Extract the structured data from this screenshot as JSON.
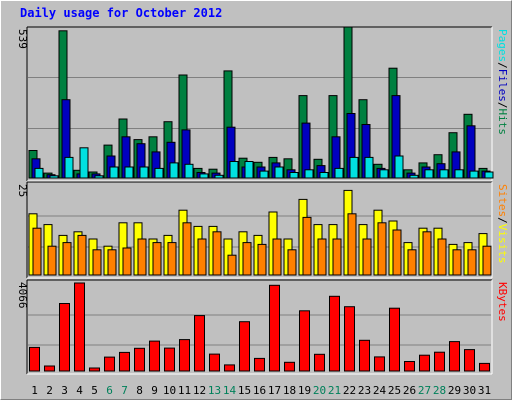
{
  "chart_data": {
    "type": "bar",
    "title": "Daily usage for October 2012",
    "categories": [
      "1",
      "2",
      "3",
      "4",
      "5",
      "6",
      "7",
      "8",
      "9",
      "10",
      "11",
      "12",
      "13",
      "14",
      "15",
      "16",
      "17",
      "18",
      "19",
      "20",
      "21",
      "22",
      "23",
      "24",
      "25",
      "26",
      "27",
      "28",
      "29",
      "30",
      "31"
    ],
    "weekend_days": [
      "6",
      "7",
      "13",
      "14",
      "20",
      "21",
      "27",
      "28"
    ],
    "panels": [
      {
        "name": "top",
        "scale_max_label": "539",
        "ylim": [
          0,
          539
        ],
        "right_label": [
          "Pages",
          "/",
          "Files",
          "/",
          "Hits"
        ],
        "right_label_colors": [
          "#00e0e0",
          "#000000",
          "#0000c0",
          "#000000",
          "#008040"
        ],
        "series": [
          {
            "name": "Hits",
            "color": "#008040",
            "values": [
              100,
              18,
              536,
              28,
              22,
              120,
              215,
              140,
              150,
              205,
              375,
              35,
              32,
              390,
              72,
              57,
              75,
              70,
              300,
              68,
              300,
              550,
              285,
              50,
              400,
              30,
              55,
              85,
              165,
              232,
              35
            ]
          },
          {
            "name": "Files",
            "color": "#0000c0",
            "values": [
              70,
              12,
              285,
              15,
              15,
              80,
              150,
              125,
              95,
              130,
              175,
              20,
              18,
              185,
              40,
              40,
              55,
              30,
              200,
              45,
              150,
              235,
              195,
              35,
              300,
              18,
              40,
              52,
              95,
              190,
              25
            ]
          },
          {
            "name": "Pages",
            "color": "#00e0e0",
            "values": [
              35,
              8,
              75,
              110,
              8,
              40,
              40,
              40,
              35,
              55,
              50,
              15,
              10,
              60,
              60,
              25,
              40,
              20,
              30,
              20,
              35,
              75,
              75,
              30,
              80,
              10,
              30,
              30,
              30,
              25,
              22
            ]
          }
        ]
      },
      {
        "name": "middle",
        "scale_max_label": "25",
        "ylim": [
          0,
          25
        ],
        "right_label": [
          "Sites",
          "/",
          "Visits"
        ],
        "right_label_colors": [
          "#ff8000",
          "#000000",
          "#ffff00"
        ],
        "series": [
          {
            "name": "Visits",
            "color": "#ffff00",
            "values": [
              17,
              14,
              11,
              12,
              10,
              8,
              14.5,
              14.5,
              10,
              11,
              18,
              13.5,
              13.5,
              10,
              12,
              11,
              17.5,
              10,
              21,
              14,
              14,
              23.5,
              14,
              18,
              15,
              9,
              13,
              13,
              8.5,
              9,
              11.5
            ]
          },
          {
            "name": "Sites",
            "color": "#ff8000",
            "values": [
              13,
              8,
              9,
              11,
              7,
              7,
              7.5,
              10,
              9,
              9,
              14.5,
              10,
              12,
              5.5,
              9,
              8.5,
              10,
              7,
              16,
              10,
              10,
              17,
              10,
              14.5,
              12.5,
              7,
              12,
              10,
              7,
              7,
              8
            ]
          }
        ]
      },
      {
        "name": "bottom",
        "scale_max_label": "4066",
        "ylim": [
          0,
          4066
        ],
        "right_label": [
          "KBytes"
        ],
        "right_label_colors": [
          "#ff0000"
        ],
        "series": [
          {
            "name": "KBytes",
            "color": "#ff0000",
            "values": [
              1090,
              230,
              3120,
              4066,
              140,
              640,
              860,
              1050,
              1380,
              1060,
              1450,
              2560,
              780,
              280,
              2280,
              580,
              3960,
              400,
              2780,
              770,
              3450,
              2970,
              1420,
              650,
              2900,
              440,
              730,
              870,
              1360,
              990,
              350
            ]
          }
        ]
      }
    ]
  },
  "colors": {
    "title": "#0000ff",
    "weekday_label": "#000000",
    "weekend_label": "#00805a",
    "axis_number": "#000000",
    "panel_bg": "#c0c0c0",
    "gridline": "#808080"
  }
}
